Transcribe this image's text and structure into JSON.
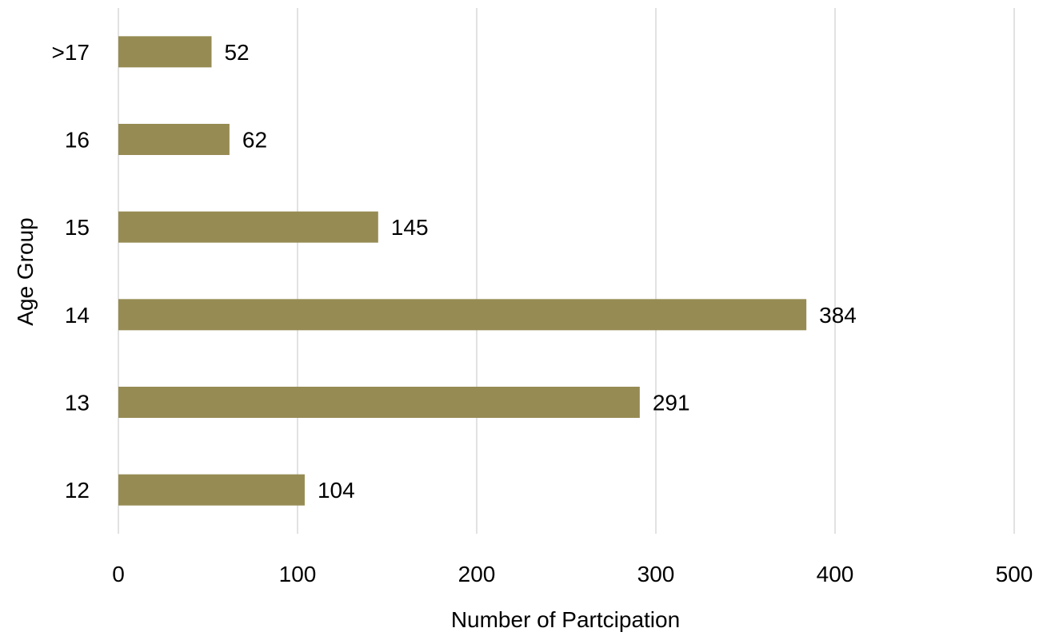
{
  "chart_data": {
    "type": "bar",
    "orientation": "horizontal",
    "categories": [
      "12",
      "13",
      "14",
      "15",
      "16",
      ">17"
    ],
    "values": [
      104,
      291,
      384,
      145,
      62,
      52
    ],
    "xlabel": "Number of Partcipation",
    "ylabel": "Age Group",
    "xlim": [
      0,
      500
    ],
    "xticks": [
      "0",
      "100",
      "200",
      "300",
      "400",
      "500"
    ],
    "grid": "vertical",
    "legend": "none",
    "data_labels": true,
    "bar_color": "#968B53",
    "grid_color": "#D9D9D9"
  }
}
